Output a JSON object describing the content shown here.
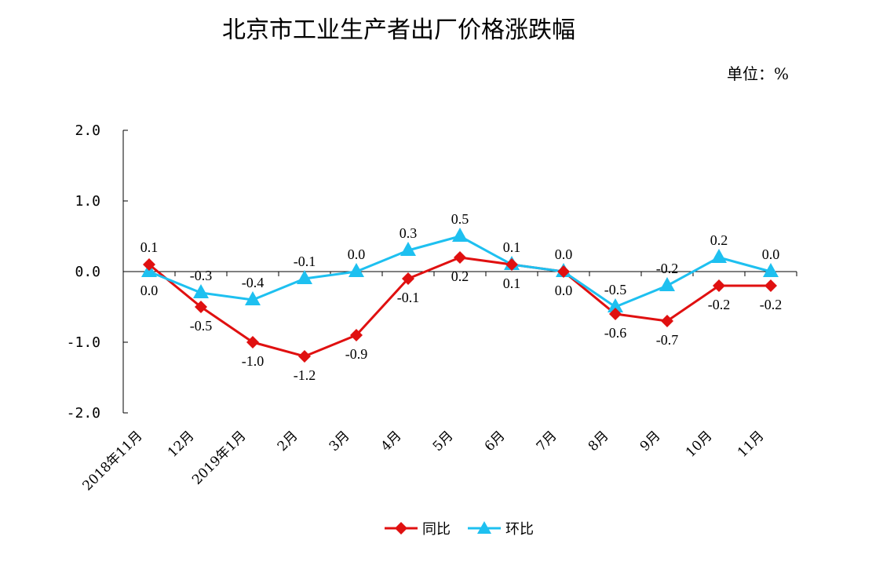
{
  "chart_data": {
    "type": "line",
    "title": "北京市工业生产者出厂价格涨跌幅",
    "unit_label": "单位：%",
    "categories": [
      "2018年11月",
      "12月",
      "2019年1月",
      "2月",
      "3月",
      "4月",
      "5月",
      "6月",
      "7月",
      "8月",
      "9月",
      "10月",
      "11月"
    ],
    "ylim": [
      -2.0,
      2.0
    ],
    "yticks": [
      "2.0",
      "1.0",
      "0.0",
      "-1.0",
      "-2.0"
    ],
    "ytick_values": [
      2.0,
      1.0,
      0.0,
      -1.0,
      -2.0
    ],
    "grid": false,
    "legend_position": "bottom",
    "series": [
      {
        "name": "同比",
        "color": "#e01010",
        "marker": "diamond",
        "values": [
          0.1,
          -0.5,
          -1.0,
          -1.2,
          -0.9,
          -0.1,
          0.2,
          0.1,
          0.0,
          -0.6,
          -0.7,
          -0.2,
          -0.2
        ],
        "labels": [
          "0.1",
          "-0.5",
          "-1.0",
          "-1.2",
          "-0.9",
          "-0.1",
          "0.2",
          "0.1",
          "0.0",
          "-0.6",
          "-0.7",
          "-0.2",
          "-0.2"
        ]
      },
      {
        "name": "环比",
        "color": "#1ec0f0",
        "marker": "triangle",
        "values": [
          0.0,
          -0.3,
          -0.4,
          -0.1,
          0.0,
          0.3,
          0.5,
          0.1,
          0.0,
          -0.5,
          -0.2,
          0.2,
          0.0
        ],
        "labels": [
          "0.0",
          "-0.3",
          "-0.4",
          "-0.1",
          "0.0",
          "0.3",
          "0.5",
          "0.1",
          "0.0",
          "-0.5",
          "-0.2",
          "0.2",
          "0.0"
        ]
      }
    ]
  }
}
